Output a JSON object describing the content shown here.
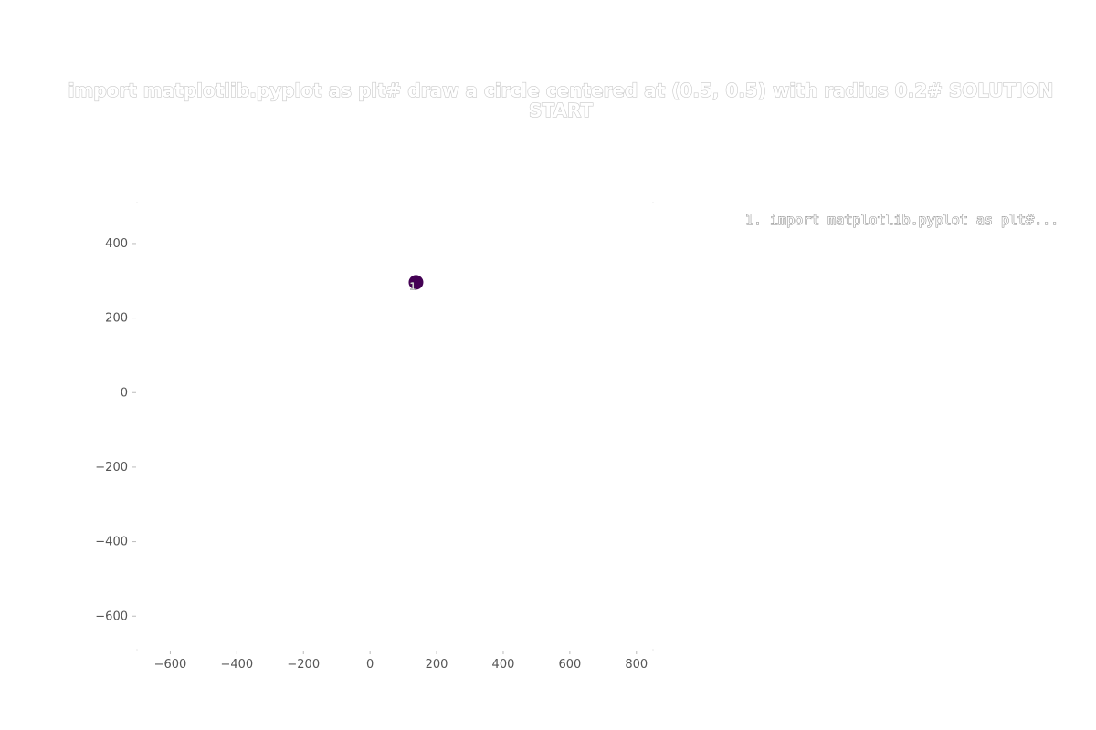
{
  "chart_data": {
    "type": "scatter",
    "title_lines": [
      "import matplotlib.pyplot as plt# draw a circle centered at (0.5, 0.5) with radius 0.2# SOLUTION",
      "START"
    ],
    "xlim": [
      -700,
      850
    ],
    "ylim": [
      -690,
      510
    ],
    "xticks": [
      -600,
      -400,
      -200,
      0,
      200,
      400,
      600,
      800
    ],
    "yticks": [
      -600,
      -400,
      -200,
      0,
      200,
      400
    ],
    "xtick_labels": [
      "−600",
      "−400",
      "−200",
      "0",
      "200",
      "400",
      "600",
      "800"
    ],
    "ytick_labels": [
      "−600",
      "−400",
      "−200",
      "0",
      "200",
      "400"
    ],
    "points": [
      {
        "x": 138,
        "y": 296,
        "label": "1"
      }
    ],
    "legend": [
      "1. import matplotlib.pyplot as plt#..."
    ],
    "legend_placement": "right",
    "point_color": "#440154",
    "grid": false,
    "xlabel": "",
    "ylabel": ""
  }
}
